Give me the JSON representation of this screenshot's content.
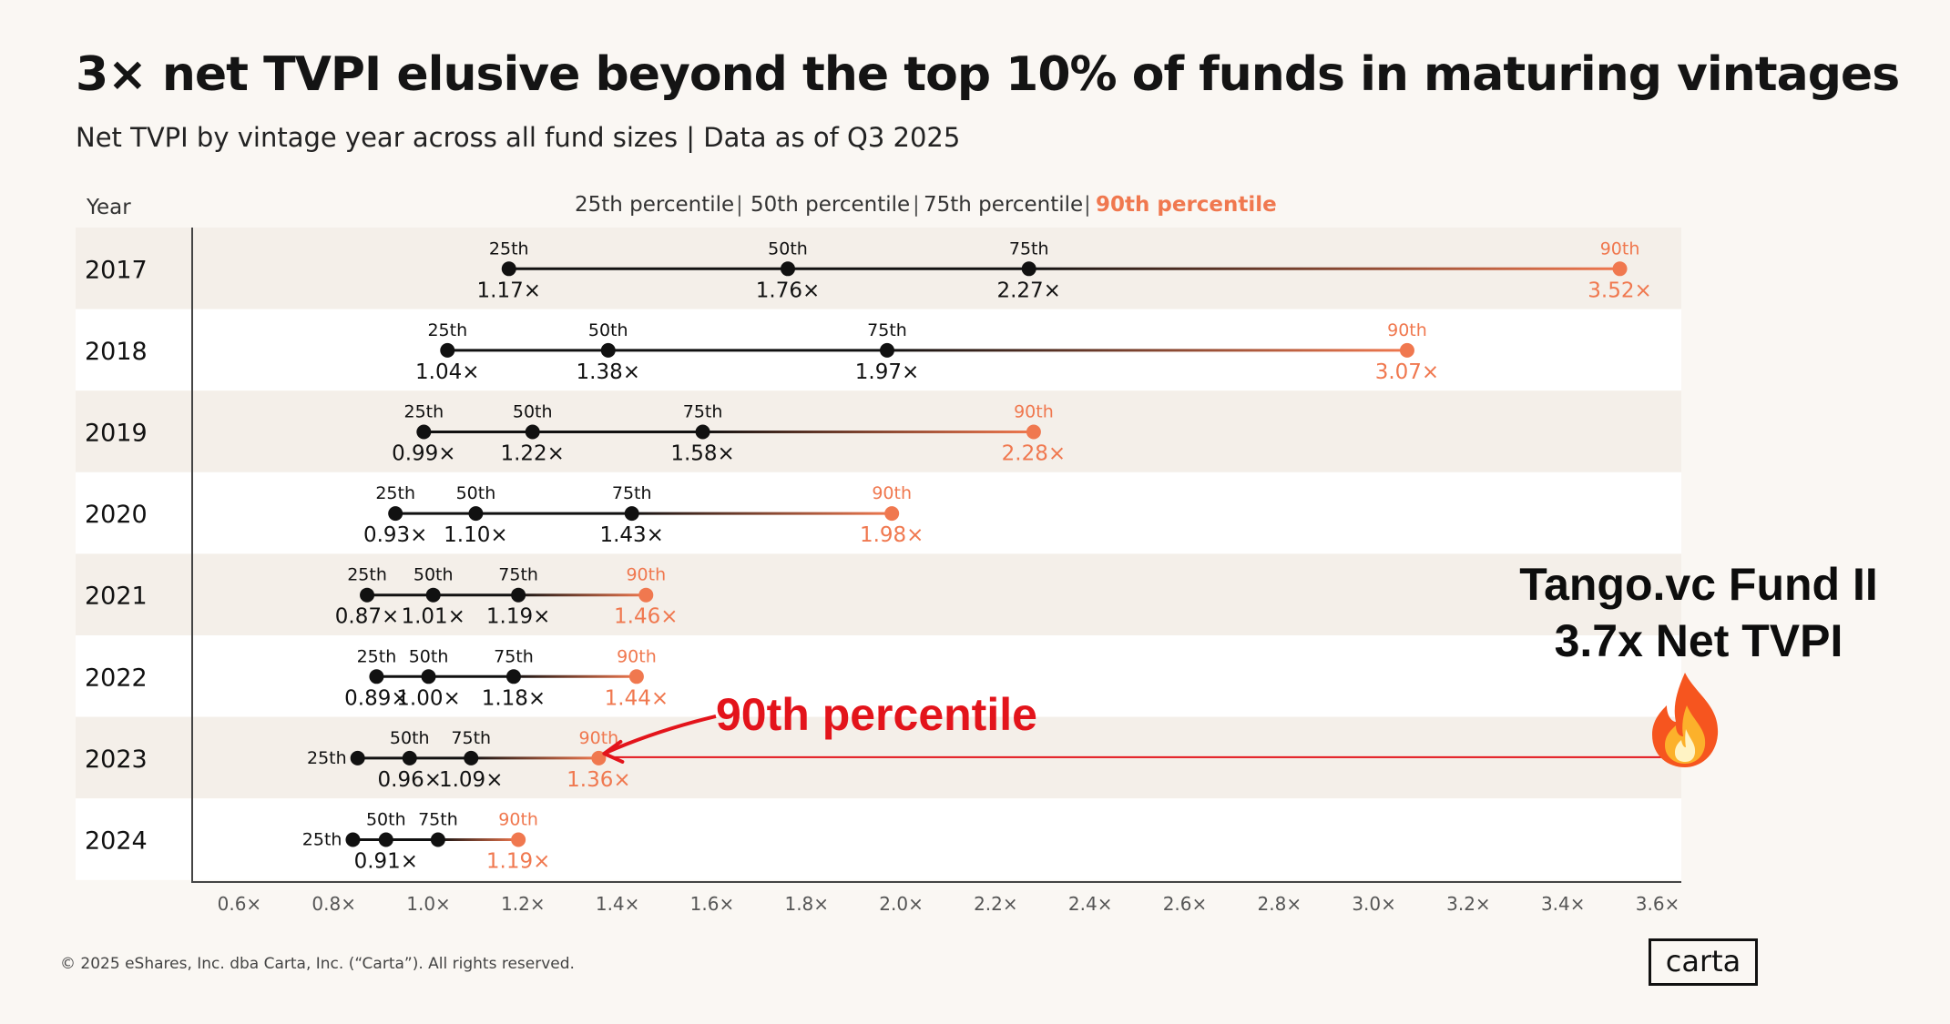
{
  "title": "3× net TVPI elusive beyond the top 10% of funds in maturing vintages",
  "subtitle": "Net TVPI by vintage year across all fund sizes | Data as of Q3 2025",
  "copyright": "© 2025 eShares, Inc. dba Carta, Inc. (“Carta”). All rights reserved.",
  "logo": "carta",
  "annotation": {
    "tango_line1": "Tango.vc Fund II",
    "tango_line2": "3.7x Net TVPI",
    "callout": "90th percentile",
    "icon": "fire-icon"
  },
  "colors": {
    "dark": "#111111",
    "accent": "#f0784f",
    "annotation_red": "#e3141b",
    "band": "#f4efe9",
    "background": "#faf7f3"
  },
  "chart_data": {
    "type": "dot-range",
    "ylabel": "Year",
    "legend": [
      "25th percentile",
      "50th percentile",
      "75th percentile",
      "90th percentile"
    ],
    "xlim": [
      0.5,
      3.65
    ],
    "xticks": [
      "0.6×",
      "0.8×",
      "1.0×",
      "1.2×",
      "1.4×",
      "1.6×",
      "1.8×",
      "2.0×",
      "2.2×",
      "2.4×",
      "2.6×",
      "2.8×",
      "3.0×",
      "3.2×",
      "3.4×",
      "3.6×"
    ],
    "xtick_values": [
      0.6,
      0.8,
      1.0,
      1.2,
      1.4,
      1.6,
      1.8,
      2.0,
      2.2,
      2.4,
      2.6,
      2.8,
      3.0,
      3.2,
      3.4,
      3.6
    ],
    "point_labels": [
      "25th",
      "50th",
      "75th",
      "90th"
    ],
    "rows": [
      {
        "year": "2017",
        "p25": 1.17,
        "p50": 1.76,
        "p75": 2.27,
        "p90": 3.52,
        "labels": [
          "1.17×",
          "1.76×",
          "2.27×",
          "3.52×"
        ]
      },
      {
        "year": "2018",
        "p25": 1.04,
        "p50": 1.38,
        "p75": 1.97,
        "p90": 3.07,
        "labels": [
          "1.04×",
          "1.38×",
          "1.97×",
          "3.07×"
        ]
      },
      {
        "year": "2019",
        "p25": 0.99,
        "p50": 1.22,
        "p75": 1.58,
        "p90": 2.28,
        "labels": [
          "0.99×",
          "1.22×",
          "1.58×",
          "2.28×"
        ]
      },
      {
        "year": "2020",
        "p25": 0.93,
        "p50": 1.1,
        "p75": 1.43,
        "p90": 1.98,
        "labels": [
          "0.93×",
          "1.10×",
          "1.43×",
          "1.98×"
        ]
      },
      {
        "year": "2021",
        "p25": 0.87,
        "p50": 1.01,
        "p75": 1.19,
        "p90": 1.46,
        "labels": [
          "0.87×",
          "1.01×",
          "1.19×",
          "1.46×"
        ]
      },
      {
        "year": "2022",
        "p25": 0.89,
        "p50": 1.0,
        "p75": 1.18,
        "p90": 1.44,
        "labels": [
          "0.89×",
          "1.00×",
          "1.18×",
          "1.44×"
        ]
      },
      {
        "year": "2023",
        "p25": 0.85,
        "p50": 0.96,
        "p75": 1.09,
        "p90": 1.36,
        "labels": [
          "",
          "0.96×",
          "1.09×",
          "1.36×"
        ]
      },
      {
        "year": "2024",
        "p25": 0.84,
        "p50": 0.91,
        "p75": 1.02,
        "p90": 1.19,
        "labels": [
          "",
          "0.91×",
          "",
          "1.19×"
        ]
      }
    ],
    "annotation_value": 3.7
  }
}
